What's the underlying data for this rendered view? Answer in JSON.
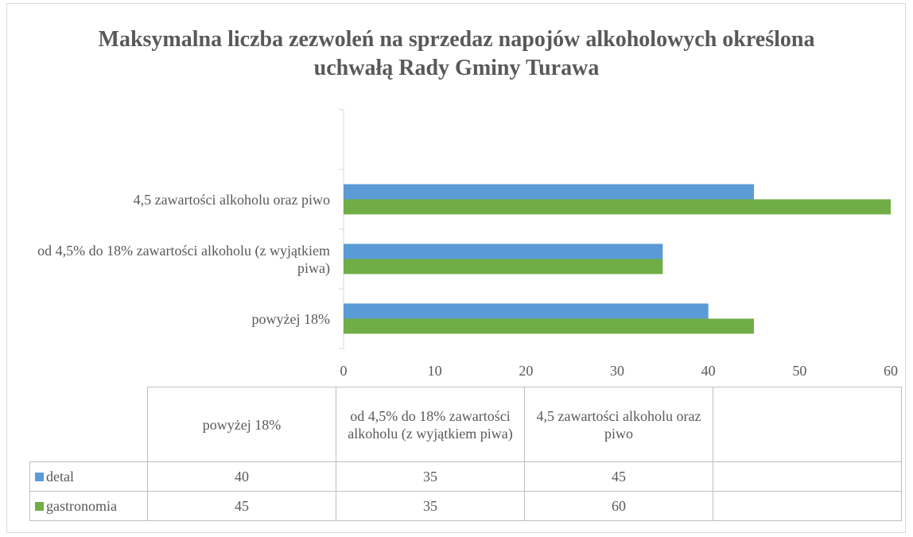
{
  "chart_data": {
    "type": "hbar",
    "title": "Maksymalna liczba zezwoleń na sprzedaz napojów alkoholowych określona uchwałą Rady Gminy Turawa",
    "categories": [
      "powyżej 18%",
      "od 4,5% do 18% zawartości alkoholu (z wyjątkiem piwa)",
      "4,5 zawartości alkoholu oraz piwo",
      null
    ],
    "series": [
      {
        "name": "detal",
        "color": "#5b9bd5",
        "values": [
          40,
          35,
          45,
          null
        ]
      },
      {
        "name": "gastronomia",
        "color": "#70ad47",
        "values": [
          45,
          35,
          60,
          null
        ]
      }
    ],
    "xlim": [
      0,
      60
    ],
    "xticks": [
      0,
      10,
      20,
      30,
      40,
      50,
      60
    ],
    "grid": false,
    "data_table": true
  }
}
